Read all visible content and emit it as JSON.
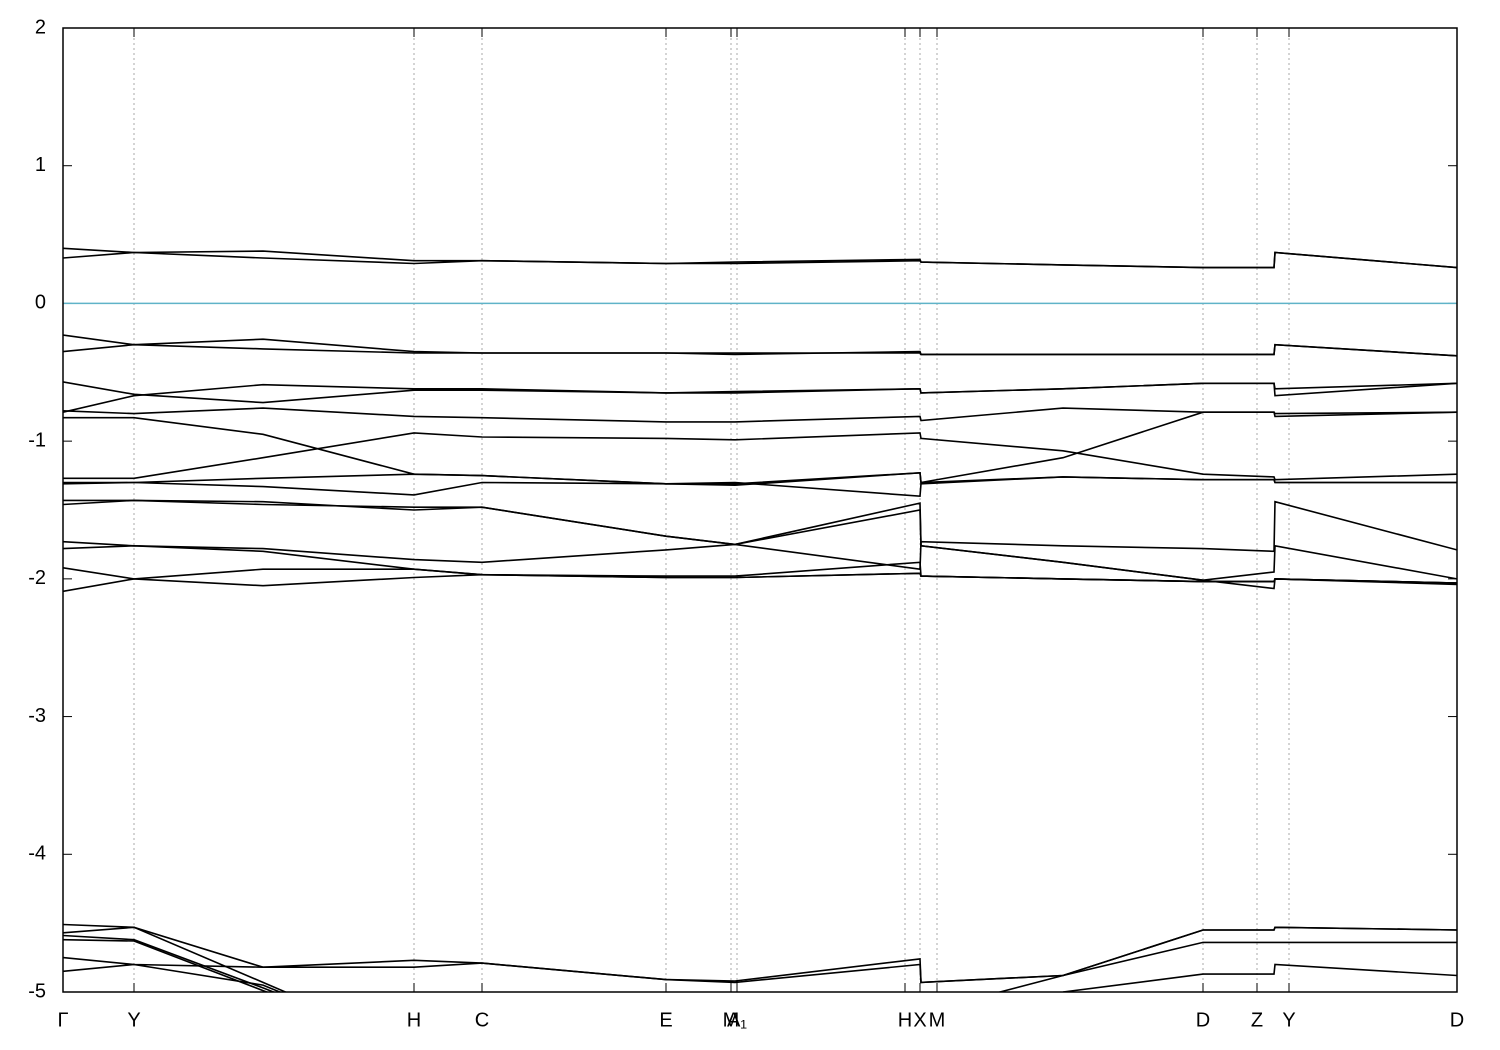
{
  "chart_data": {
    "type": "line",
    "x": [
      0,
      71,
      200,
      351,
      419,
      603,
      672,
      857,
      858,
      1000,
      1140,
      1211,
      1212,
      1394
    ],
    "xlim": [
      0,
      1394
    ],
    "xticks": [
      {
        "value": 0,
        "label": "Γ"
      },
      {
        "value": 71,
        "label": "Y"
      },
      {
        "value": 351,
        "label": "H"
      },
      {
        "value": 419,
        "label": "C"
      },
      {
        "value": 603,
        "label": "E"
      },
      {
        "value": 668,
        "label": "M"
      },
      {
        "value": 674,
        "label": "A₁"
      },
      {
        "value": 842,
        "label": "H"
      },
      {
        "value": 857,
        "label": "X"
      },
      {
        "value": 874,
        "label": "M"
      },
      {
        "value": 1140,
        "label": "D"
      },
      {
        "value": 1194,
        "label": "Z"
      },
      {
        "value": 1226,
        "label": "Y"
      },
      {
        "value": 1394,
        "label": "D"
      }
    ],
    "ylim": [
      -5,
      2
    ],
    "yticks": [
      -5,
      -4,
      -3,
      -2,
      -1,
      0,
      1,
      2
    ],
    "grid": true,
    "color": "#000000",
    "reference_line": {
      "value": 0,
      "color": "#5fb3c8"
    },
    "series": [
      {
        "values": [
          0.4,
          0.37,
          0.38,
          0.31,
          0.31,
          0.29,
          0.29,
          0.31,
          0.3,
          0.28,
          0.26,
          0.26,
          0.37,
          0.26
        ]
      },
      {
        "values": [
          0.33,
          0.37,
          0.33,
          0.29,
          0.31,
          0.29,
          0.3,
          0.32,
          0.3,
          0.28,
          0.26,
          0.26,
          0.37,
          0.26
        ]
      },
      {
        "values": [
          -0.23,
          -0.3,
          -0.26,
          -0.35,
          -0.36,
          -0.36,
          -0.37,
          -0.35,
          -0.37,
          -0.37,
          -0.37,
          -0.37,
          -0.3,
          -0.38
        ]
      },
      {
        "values": [
          -0.35,
          -0.3,
          -0.33,
          -0.36,
          -0.36,
          -0.36,
          -0.36,
          -0.36,
          -0.37,
          -0.37,
          -0.37,
          -0.37,
          -0.3,
          -0.38
        ]
      },
      {
        "values": [
          -0.57,
          -0.66,
          -0.72,
          -0.63,
          -0.63,
          -0.65,
          -0.65,
          -0.62,
          -0.65,
          -0.62,
          -0.58,
          -0.58,
          -0.67,
          -0.58
        ]
      },
      {
        "values": [
          -0.79,
          -0.67,
          -0.59,
          -0.62,
          -0.62,
          -0.65,
          -0.64,
          -0.62,
          -0.65,
          -0.62,
          -0.58,
          -0.58,
          -0.62,
          -0.58
        ]
      },
      {
        "values": [
          -0.78,
          -0.8,
          -0.76,
          -0.82,
          -0.83,
          -0.86,
          -0.86,
          -0.82,
          -0.85,
          -0.76,
          -0.79,
          -0.79,
          -0.8,
          -0.79
        ]
      },
      {
        "values": [
          -0.83,
          -0.83,
          -0.95,
          -1.24,
          -1.25,
          -1.31,
          -1.31,
          -1.23,
          -1.3,
          -1.12,
          -0.79,
          -0.79,
          -0.82,
          -0.79
        ]
      },
      {
        "values": [
          -1.27,
          -1.27,
          -1.12,
          -0.94,
          -0.97,
          -0.98,
          -0.99,
          -0.94,
          -0.98,
          -1.07,
          -1.24,
          -1.26,
          -1.28,
          -1.24
        ]
      },
      {
        "values": [
          -1.3,
          -1.3,
          -1.33,
          -1.39,
          -1.3,
          -1.31,
          -1.3,
          -1.4,
          -1.31,
          -1.26,
          -1.28,
          -1.28,
          -1.3,
          -1.3
        ]
      },
      {
        "values": [
          -1.31,
          -1.3,
          -1.27,
          -1.24,
          -1.25,
          -1.31,
          -1.32,
          -1.23,
          -1.3,
          -1.26,
          -1.28,
          -1.28,
          -1.3,
          -1.3
        ]
      },
      {
        "values": [
          -1.46,
          -1.43,
          -1.44,
          -1.5,
          -1.48,
          -1.69,
          -1.75,
          -1.93,
          -1.73,
          -1.76,
          -1.78,
          -1.8,
          -1.44,
          -1.79
        ]
      },
      {
        "values": [
          -1.43,
          -1.43,
          -1.46,
          -1.48,
          -1.48,
          -1.69,
          -1.75,
          -1.5,
          -1.76,
          -1.88,
          -2.01,
          -1.95,
          -1.76,
          -2.0
        ]
      },
      {
        "values": [
          -1.73,
          -1.76,
          -1.78,
          -1.86,
          -1.88,
          -1.79,
          -1.75,
          -1.45,
          -1.76,
          -1.88,
          -2.01,
          -2.07,
          -2.0,
          -2.04
        ]
      },
      {
        "values": [
          -1.78,
          -1.76,
          -1.8,
          -1.93,
          -1.97,
          -1.98,
          -1.98,
          -1.88,
          -1.98,
          -2.0,
          -2.02,
          -2.02,
          -2.0,
          -2.03
        ]
      },
      {
        "values": [
          -1.92,
          -2.0,
          -2.05,
          -1.99,
          -1.97,
          -1.99,
          -1.99,
          -1.96,
          -1.98,
          -2.0,
          -2.02,
          -2.02,
          -2.0,
          -2.03
        ]
      },
      {
        "values": [
          -2.09,
          -2.0,
          -1.93,
          -1.93,
          -1.97,
          -1.99,
          -1.99,
          -1.96,
          -1.98,
          -2.0,
          -2.02,
          -2.02,
          -2.0,
          -2.03
        ]
      },
      {
        "values": [
          -4.51,
          -4.53,
          -4.93,
          -5.4,
          null,
          null,
          null,
          null,
          null,
          null,
          null,
          null,
          null,
          null
        ]
      },
      {
        "values": [
          -4.57,
          -4.53,
          -4.82,
          -4.77,
          -4.79,
          -4.91,
          -4.92,
          -4.76,
          -4.93,
          -4.88,
          -4.55,
          -4.55,
          -4.53,
          -4.55
        ]
      },
      {
        "values": [
          -4.59,
          -4.62,
          -4.97,
          -5.4,
          null,
          null,
          null,
          null,
          -5.15,
          -4.88,
          -4.64,
          -4.64,
          -4.64,
          -4.64
        ]
      },
      {
        "values": [
          -4.62,
          -4.63,
          -4.99,
          -5.4,
          null,
          null,
          null,
          null,
          null,
          -5.0,
          -4.87,
          -4.87,
          -4.8,
          -4.88
        ]
      },
      {
        "values": [
          -4.75,
          -4.8,
          -4.82,
          -4.82,
          -4.79,
          -4.91,
          -4.93,
          -4.8,
          -4.93,
          -4.88,
          -4.55,
          -4.55,
          -4.53,
          -4.55
        ]
      },
      {
        "values": [
          -4.85,
          -4.8,
          -4.95,
          -5.4,
          null,
          null,
          null,
          null,
          null,
          null,
          null,
          null,
          null,
          null
        ]
      }
    ]
  }
}
